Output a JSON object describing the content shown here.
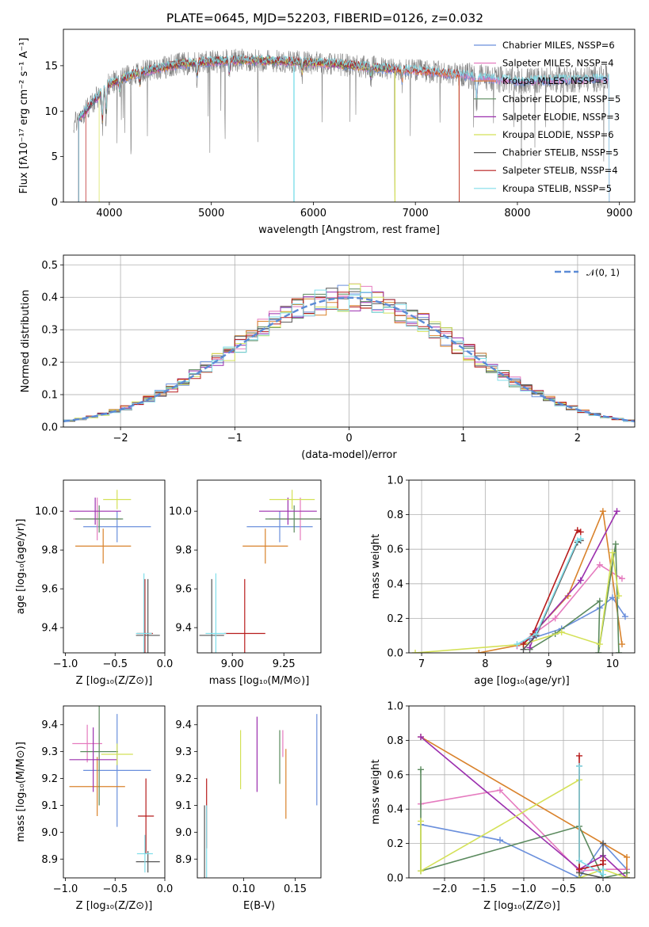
{
  "chart_data": [
    {
      "type": "line",
      "title": "PLATE=0645, MJD=52203, FIBERID=0126, z=0.032",
      "xlabel": "wavelength [Angstrom, rest frame]",
      "ylabel": "Flux [fλ10⁻¹⁷ erg cm⁻² s⁻¹ A⁻¹]",
      "xlim": [
        3550,
        9150
      ],
      "ylim": [
        0,
        19
      ],
      "xticks": [
        "4000",
        "5000",
        "6000",
        "7000",
        "8000",
        "9000"
      ],
      "yticks": [
        "0",
        "5",
        "10",
        "15"
      ],
      "legend_position": "upper right",
      "series": [
        {
          "name": "Chabrier MILES, N_SSP=6",
          "color": "#6a8fdc"
        },
        {
          "name": "Salpeter MILES, N_SSP=4",
          "color": "#e57bbf"
        },
        {
          "name": "Kroupa MILES, N_SSP=3",
          "color": "#d9822b"
        },
        {
          "name": "Chabrier ELODIE, N_SSP=5",
          "color": "#5b8a5e"
        },
        {
          "name": "Salpeter ELODIE, N_SSP=3",
          "color": "#9b2fae"
        },
        {
          "name": "Kroupa ELODIE, N_SSP=6",
          "color": "#d4e157"
        },
        {
          "name": "Chabrier STELIB, N_SSP=5",
          "color": "#555555"
        },
        {
          "name": "Salpeter STELIB, N_SSP=4",
          "color": "#b71c1c"
        },
        {
          "name": "Kroupa STELIB, N_SSP=5",
          "color": "#80deea"
        }
      ],
      "continuum": [
        [
          3650,
          8.5
        ],
        [
          3800,
          10.5
        ],
        [
          4000,
          13.0
        ],
        [
          4300,
          14.3
        ],
        [
          4700,
          15.2
        ],
        [
          5200,
          15.6
        ],
        [
          5700,
          15.5
        ],
        [
          6200,
          15.2
        ],
        [
          6700,
          14.7
        ],
        [
          7200,
          14.3
        ],
        [
          7600,
          13.8
        ],
        [
          8000,
          13.3
        ],
        [
          8500,
          13.5
        ],
        [
          8900,
          13.6
        ]
      ],
      "data_extent": [
        3650,
        8900
      ],
      "model_extents": [
        [
          3700,
          8900
        ],
        [
          3700,
          8900
        ],
        [
          3700,
          7430
        ],
        [
          3700,
          6800
        ],
        [
          3700,
          6800
        ],
        [
          3900,
          6800
        ],
        [
          3700,
          6800
        ],
        [
          3770,
          7430
        ],
        [
          3700,
          8900
        ]
      ]
    },
    {
      "type": "step",
      "xlabel": "(data-model)/error",
      "ylabel": "Normed distribution",
      "xlim": [
        -2.5,
        2.5
      ],
      "ylim": [
        0,
        0.53
      ],
      "xticks": [
        "−2",
        "−1",
        "0",
        "1",
        "2"
      ],
      "yticks": [
        "0.0",
        "0.1",
        "0.2",
        "0.3",
        "0.4",
        "0.5"
      ],
      "grid": true,
      "legend_position": "upper right",
      "reference_curve": {
        "name": "𝒩(0, 1)",
        "mean": 0,
        "sd": 1,
        "color": "#5b8bd6"
      },
      "bin_width": 0.1,
      "bin_start": -2.5
    },
    {
      "type": "errorbar",
      "xlabel": "Z [log₁₀(Z/Z⊙)]",
      "ylabel": "age  [log₁₀(age/yr)]",
      "xlim": [
        -1.02,
        0.0
      ],
      "ylim": [
        9.27,
        10.16
      ],
      "xticks": [
        "−1.0",
        "−0.5",
        "0.0"
      ],
      "yticks": [
        "9.4",
        "9.6",
        "9.8",
        "10.0"
      ],
      "points": [
        {
          "x": -0.48,
          "xerr": 0.34,
          "y": 9.92,
          "yerr": 0.08
        },
        {
          "x": -0.68,
          "xerr": 0.24,
          "y": 9.96,
          "yerr": 0.11
        },
        {
          "x": -0.62,
          "xerr": 0.28,
          "y": 9.82,
          "yerr": 0.09
        },
        {
          "x": -0.66,
          "xerr": 0.24,
          "y": 9.96,
          "yerr": 0.07
        },
        {
          "x": -0.7,
          "xerr": 0.26,
          "y": 10.0,
          "yerr": 0.07
        },
        {
          "x": -0.48,
          "xerr": 0.14,
          "y": 10.06,
          "yerr": 0.05
        },
        {
          "x": -0.17,
          "xerr": 0.12,
          "y": 9.36,
          "yerr": 0.29
        },
        {
          "x": -0.2,
          "xerr": 0.08,
          "y": 9.37,
          "yerr": 0.28
        },
        {
          "x": -0.21,
          "xerr": 0.08,
          "y": 9.37,
          "yerr": 0.31
        }
      ]
    },
    {
      "type": "errorbar",
      "xlabel": "mass [log₁₀(M/M⊙)]",
      "ylabel": "",
      "xlim": [
        8.83,
        9.43
      ],
      "ylim": [
        9.27,
        10.16
      ],
      "xticks": [
        "9.00",
        "9.25"
      ],
      "yticks": [
        "9.4",
        "9.6",
        "9.8",
        "10.0"
      ],
      "points": [
        {
          "x": 9.23,
          "xerr": 0.16,
          "y": 9.92,
          "yerr": 0.08
        },
        {
          "x": 9.33,
          "xerr": 0.15,
          "y": 9.96,
          "yerr": 0.11
        },
        {
          "x": 9.16,
          "xerr": 0.11,
          "y": 9.82,
          "yerr": 0.09
        },
        {
          "x": 9.3,
          "xerr": 0.14,
          "y": 9.96,
          "yerr": 0.07
        },
        {
          "x": 9.27,
          "xerr": 0.14,
          "y": 10.0,
          "yerr": 0.07
        },
        {
          "x": 9.29,
          "xerr": 0.11,
          "y": 10.06,
          "yerr": 0.05
        },
        {
          "x": 8.9,
          "xerr": 0.06,
          "y": 9.36,
          "yerr": 0.29
        },
        {
          "x": 9.06,
          "xerr": 0.1,
          "y": 9.37,
          "yerr": 0.28
        },
        {
          "x": 8.92,
          "xerr": 0.05,
          "y": 9.37,
          "yerr": 0.31
        }
      ]
    },
    {
      "type": "line",
      "xlabel": "age  [log₁₀(age/yr)]",
      "ylabel": "mass weight",
      "xlim": [
        6.8,
        10.35
      ],
      "ylim": [
        0,
        1.0
      ],
      "xticks": [
        "7",
        "8",
        "9",
        "10"
      ],
      "yticks": [
        "0.0",
        "0.2",
        "0.4",
        "0.6",
        "0.8",
        "1.0"
      ],
      "grid": true,
      "series": [
        {
          "points": [
            [
              8.5,
              0.04
            ],
            [
              8.7,
              0.08
            ],
            [
              9.2,
              0.14
            ],
            [
              9.8,
              0.26
            ],
            [
              10.0,
              0.32
            ],
            [
              10.2,
              0.21
            ]
          ]
        },
        {
          "points": [
            [
              8.5,
              0.04
            ],
            [
              8.8,
              0.12
            ],
            [
              9.1,
              0.2
            ],
            [
              9.8,
              0.51
            ],
            [
              10.15,
              0.43
            ]
          ]
        },
        {
          "points": [
            [
              7.9,
              0.0
            ],
            [
              8.6,
              0.05
            ],
            [
              9.3,
              0.33
            ],
            [
              9.85,
              0.82
            ],
            [
              10.15,
              0.05
            ]
          ]
        },
        {
          "points": [
            [
              8.7,
              0.02
            ],
            [
              9.1,
              0.11
            ],
            [
              9.8,
              0.3
            ],
            [
              9.78,
              0.0
            ],
            [
              10.05,
              0.63
            ],
            [
              10.1,
              0.0
            ]
          ]
        },
        {
          "points": [
            [
              8.7,
              0.03
            ],
            [
              8.8,
              0.13
            ],
            [
              9.5,
              0.42
            ],
            [
              10.07,
              0.82
            ]
          ]
        },
        {
          "points": [
            [
              6.9,
              0.0
            ],
            [
              8.6,
              0.05
            ],
            [
              9.2,
              0.12
            ],
            [
              9.8,
              0.05
            ],
            [
              10.0,
              0.58
            ],
            [
              10.1,
              0.33
            ]
          ]
        },
        {
          "points": [
            [
              8.6,
              0.02
            ],
            [
              8.8,
              0.1
            ],
            [
              9.45,
              0.64
            ],
            [
              9.5,
              0.65
            ]
          ]
        },
        {
          "points": [
            [
              8.6,
              0.05
            ],
            [
              8.75,
              0.11
            ],
            [
              9.45,
              0.71
            ],
            [
              9.5,
              0.7
            ]
          ]
        },
        {
          "points": [
            [
              8.5,
              0.05
            ],
            [
              8.8,
              0.11
            ],
            [
              9.45,
              0.65
            ],
            [
              9.5,
              0.66
            ]
          ]
        }
      ]
    },
    {
      "type": "errorbar",
      "xlabel": "Z [log₁₀(Z/Z⊙)]",
      "ylabel": "mass [log₁₀(M/M⊙)]",
      "xlim": [
        -1.02,
        0.0
      ],
      "ylim": [
        8.83,
        9.47
      ],
      "xticks": [
        "−1.0",
        "−0.5",
        "0.0"
      ],
      "yticks": [
        "8.9",
        "9.0",
        "9.1",
        "9.2",
        "9.3",
        "9.4"
      ],
      "points": [
        {
          "x": -0.48,
          "xerr": 0.34,
          "y": 9.23,
          "yerr": 0.21
        },
        {
          "x": -0.78,
          "xerr": 0.15,
          "y": 9.33,
          "yerr": 0.07
        },
        {
          "x": -0.68,
          "xerr": 0.28,
          "y": 9.17,
          "yerr": 0.11
        },
        {
          "x": -0.66,
          "xerr": 0.19,
          "y": 9.3,
          "yerr": 0.2
        },
        {
          "x": -0.72,
          "xerr": 0.24,
          "y": 9.27,
          "yerr": 0.12
        },
        {
          "x": -0.48,
          "xerr": 0.16,
          "y": 9.29,
          "yerr": 0.04
        },
        {
          "x": -0.17,
          "xerr": 0.12,
          "y": 8.89,
          "yerr": 0.04
        },
        {
          "x": -0.19,
          "xerr": 0.08,
          "y": 9.06,
          "yerr": 0.14
        },
        {
          "x": -0.2,
          "xerr": 0.08,
          "y": 8.92,
          "yerr": 0.07
        }
      ]
    },
    {
      "type": "errorbar",
      "xlabel": "E(B-V)",
      "ylabel": "",
      "xlim": [
        0.055,
        0.175
      ],
      "ylim": [
        8.83,
        9.47
      ],
      "xticks": [
        "0.10",
        "0.15"
      ],
      "yticks": [
        "8.9",
        "9.0",
        "9.1",
        "9.2",
        "9.3",
        "9.4"
      ],
      "points": [
        {
          "x": 0.171,
          "xerr": 0,
          "y": 9.27,
          "yerr": 0.17
        },
        {
          "x": 0.138,
          "xerr": 0,
          "y": 9.33,
          "yerr": 0.05
        },
        {
          "x": 0.141,
          "xerr": 0,
          "y": 9.18,
          "yerr": 0.13
        },
        {
          "x": 0.135,
          "xerr": 0,
          "y": 9.28,
          "yerr": 0.1
        },
        {
          "x": 0.113,
          "xerr": 0,
          "y": 9.29,
          "yerr": 0.14
        },
        {
          "x": 0.097,
          "xerr": 0,
          "y": 9.27,
          "yerr": 0.11
        },
        {
          "x": 0.062,
          "xerr": 0,
          "y": 8.95,
          "yerr": 0.15
        },
        {
          "x": 0.064,
          "xerr": 0,
          "y": 9.07,
          "yerr": 0.13
        },
        {
          "x": 0.064,
          "xerr": 0,
          "y": 8.95,
          "yerr": 0.15
        }
      ]
    },
    {
      "type": "line",
      "xlabel": "Z [log₁₀(Z/Z⊙)]",
      "ylabel": "mass weight",
      "xlim": [
        -2.45,
        0.4
      ],
      "ylim": [
        0,
        1.0
      ],
      "xticks": [
        "−2.0",
        "−1.5",
        "−1.0",
        "−0.5",
        "0.0"
      ],
      "yticks": [
        "0.0",
        "0.2",
        "0.4",
        "0.6",
        "0.8",
        "1.0"
      ],
      "grid": true,
      "series": [
        {
          "points": [
            [
              -2.3,
              0.31
            ],
            [
              -1.3,
              0.22
            ],
            [
              -0.3,
              0.0
            ],
            [
              0.0,
              0.2
            ],
            [
              0.3,
              0.05
            ]
          ]
        },
        {
          "points": [
            [
              -2.3,
              0.43
            ],
            [
              -1.3,
              0.51
            ],
            [
              -0.3,
              0.04
            ],
            [
              0.0,
              0.05
            ],
            [
              0.3,
              0.05
            ]
          ]
        },
        {
          "points": [
            [
              -2.3,
              0.82
            ],
            [
              0.3,
              0.12
            ],
            [
              0.3,
              0.0
            ]
          ]
        },
        {
          "points": [
            [
              -2.3,
              0.63
            ],
            [
              -2.3,
              0.04
            ],
            [
              -0.3,
              0.3
            ],
            [
              0.0,
              0.0
            ],
            [
              0.3,
              0.03
            ]
          ]
        },
        {
          "points": [
            [
              -2.3,
              0.82
            ],
            [
              -0.3,
              0.05
            ],
            [
              0.0,
              0.13
            ],
            [
              0.3,
              0.0
            ]
          ]
        },
        {
          "points": [
            [
              -2.3,
              0.33
            ],
            [
              -2.3,
              0.04
            ],
            [
              -0.3,
              0.57
            ],
            [
              -0.3,
              0.0
            ],
            [
              0.0,
              0.05
            ],
            [
              0.3,
              0.0
            ]
          ]
        },
        {
          "points": [
            [
              -0.3,
              0.65
            ],
            [
              -0.3,
              0.03
            ],
            [
              0.0,
              0.0
            ],
            [
              0.0,
              0.2
            ]
          ]
        },
        {
          "points": [
            [
              -0.3,
              0.71
            ],
            [
              -0.3,
              0.05
            ],
            [
              0.0,
              0.08
            ],
            [
              0.0,
              0.1
            ]
          ]
        },
        {
          "points": [
            [
              -0.3,
              0.65
            ],
            [
              -0.3,
              0.1
            ],
            [
              0.0,
              0.02
            ],
            [
              0.0,
              0.05
            ]
          ]
        }
      ]
    }
  ]
}
